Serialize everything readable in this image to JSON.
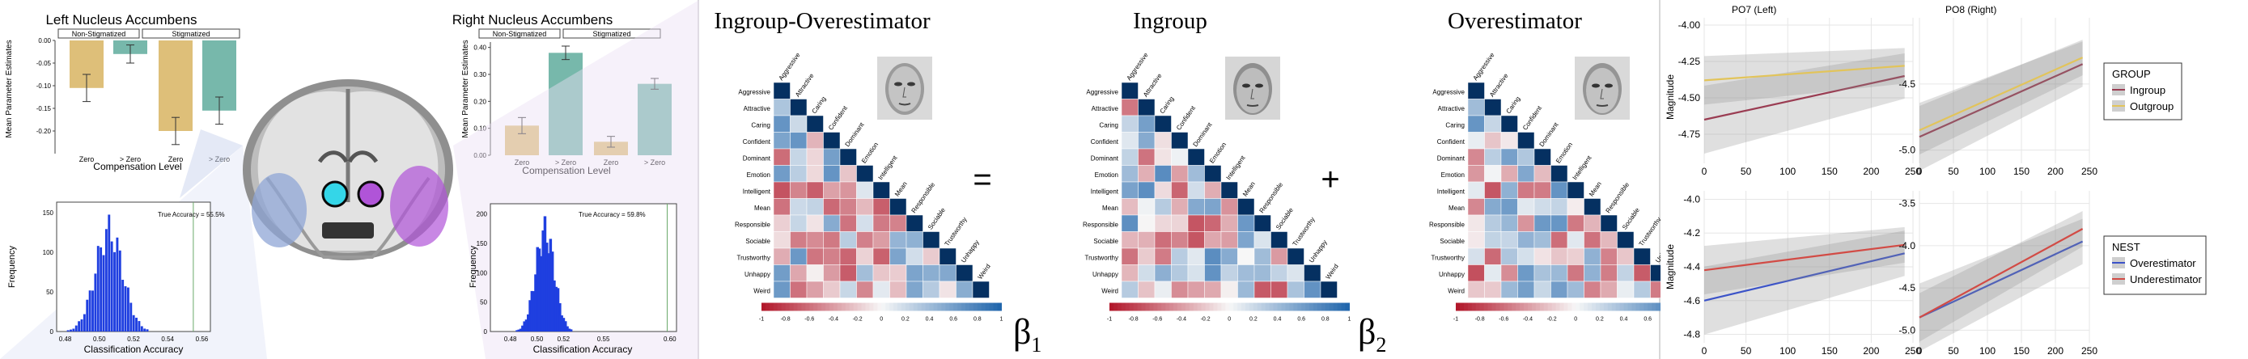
{
  "colors": {
    "stigma_tan": "#d8b462",
    "nonstig_teal": "#5fab9c",
    "hist_blue": "#1f3fe0",
    "ingroup": "#9a3c52",
    "outgroup": "#e2c45a",
    "overestimator": "#3b53c8",
    "underestimator": "#d24b45",
    "purple_roi": "#b054d8",
    "cyan_roi": "#34d6e8"
  },
  "brain": {
    "left_title": "Left Nucleus Accumbens",
    "right_title": "Right Nucleus Accumbens",
    "group_non": "Non-Stigmatized",
    "group_stig": "Stigmatized",
    "ylabel": "Mean Parameter Estimates",
    "xlabel": "Compensation Level",
    "tick_zero": "Zero",
    "tick_gt": "> Zero",
    "hist_ylabel": "Frequency",
    "hist_xlabel": "Classification Accuracy",
    "left_accuracy": "True Accuracy = 55.5%",
    "right_accuracy": "True Accuracy = 59.8%"
  },
  "matrix": {
    "title1": "Ingroup-Overestimator",
    "title2": "Ingroup",
    "title3": "Overestimator",
    "equals": "=",
    "plus": "+",
    "beta1_base": "β",
    "beta1_sub": "1",
    "beta2_base": "β",
    "beta2_sub": "2",
    "traits": [
      "Aggressive",
      "Attractive",
      "Caring",
      "Confident",
      "Dominant",
      "Emotion",
      "Intelligent",
      "Mean",
      "Responsible",
      "Sociable",
      "Trustworthy",
      "Unhappy",
      "Weird"
    ],
    "colorbar_ticks": [
      "-1",
      "-0.8",
      "-0.6",
      "-0.4",
      "-0.2",
      "0",
      "0.2",
      "0.4",
      "0.6",
      "0.8",
      "1"
    ]
  },
  "erp": {
    "title_left": "PO7 (Left)",
    "title_right": "PO8 (Right)",
    "ylabel": "Magnitude",
    "x_ticks": [
      "0",
      "50",
      "100",
      "150",
      "200",
      "250"
    ],
    "legend_group_title": "GROUP",
    "legend_group_items": [
      "Ingroup",
      "Outgroup"
    ],
    "legend_nest_title": "NEST",
    "legend_nest_items": [
      "Overestimator",
      "Underestimator"
    ],
    "tl_yticks": [
      "-4.00",
      "-4.25",
      "-4.50",
      "-4.75"
    ],
    "tr_yticks": [
      "-4.5",
      "-5.0"
    ],
    "bl_yticks": [
      "-4.0",
      "-4.2",
      "-4.4",
      "-4.6",
      "-4.8"
    ],
    "br_yticks": [
      "-3.5",
      "-4.0",
      "-4.5",
      "-5.0"
    ]
  },
  "chart_data": [
    {
      "type": "bar",
      "title": "Left Nucleus Accumbens",
      "xlabel": "Compensation Level",
      "ylabel": "Mean Parameter Estimates",
      "categories": [
        "Non-Stigmatized Zero",
        "Non-Stigmatized > Zero",
        "Stigmatized Zero",
        "Stigmatized > Zero"
      ],
      "values": [
        -0.105,
        -0.03,
        -0.2,
        -0.155
      ],
      "ylim": [
        -0.25,
        0.0
      ]
    },
    {
      "type": "bar",
      "title": "Right Nucleus Accumbens",
      "xlabel": "Compensation Level",
      "ylabel": "Mean Parameter Estimates",
      "categories": [
        "Non-Stigmatized Zero",
        "Non-Stigmatized > Zero",
        "Stigmatized Zero",
        "Stigmatized > Zero"
      ],
      "values": [
        0.11,
        0.38,
        0.05,
        0.265
      ],
      "ylim": [
        0.0,
        0.42
      ]
    },
    {
      "type": "line",
      "title": "PO7 (Left)",
      "ylabel": "Magnitude",
      "series": [
        {
          "name": "Ingroup",
          "x": [
            0,
            240
          ],
          "y": [
            -4.65,
            -4.35
          ]
        },
        {
          "name": "Outgroup",
          "x": [
            0,
            240
          ],
          "y": [
            -4.38,
            -4.28
          ]
        }
      ],
      "ylim": [
        -4.95,
        -3.95
      ]
    },
    {
      "type": "line",
      "title": "PO8 (Right)",
      "series": [
        {
          "name": "Ingroup",
          "x": [
            0,
            240
          ],
          "y": [
            -4.9,
            -4.35
          ]
        },
        {
          "name": "Outgroup",
          "x": [
            0,
            240
          ],
          "y": [
            -4.85,
            -4.3
          ]
        }
      ],
      "ylim": [
        -5.1,
        -4.0
      ]
    },
    {
      "type": "line",
      "ylabel": "Magnitude",
      "series": [
        {
          "name": "Overestimator",
          "x": [
            0,
            240
          ],
          "y": [
            -4.6,
            -4.32
          ]
        },
        {
          "name": "Underestimator",
          "x": [
            0,
            240
          ],
          "y": [
            -4.42,
            -4.27
          ]
        }
      ],
      "ylim": [
        -4.85,
        -3.95
      ]
    },
    {
      "type": "line",
      "series": [
        {
          "name": "Overestimator",
          "x": [
            0,
            240
          ],
          "y": [
            -4.85,
            -3.95
          ]
        },
        {
          "name": "Underestimator",
          "x": [
            0,
            240
          ],
          "y": [
            -4.85,
            -3.8
          ]
        }
      ],
      "ylim": [
        -5.15,
        -3.35
      ]
    }
  ]
}
